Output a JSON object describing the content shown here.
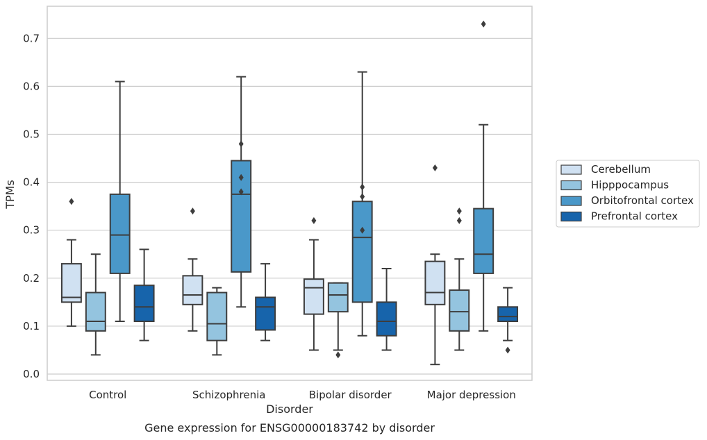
{
  "chart_data": {
    "type": "box",
    "caption": "Gene expression for ENSG00000183742 by disorder",
    "xlabel": "Disorder",
    "ylabel": "TPMs",
    "ylim": [
      -0.013,
      0.767
    ],
    "yticks": [
      "0.0",
      "0.1",
      "0.2",
      "0.3",
      "0.4",
      "0.5",
      "0.6",
      "0.7"
    ],
    "grid": true,
    "legend_position": "right",
    "categories": [
      "Control",
      "Schizophrenia",
      "Bipolar disorder",
      "Major depression"
    ],
    "series": [
      {
        "name": "Cerebellum",
        "color": "#d0e1f2",
        "boxes": [
          {
            "whisker_low": 0.1,
            "q1": 0.15,
            "median": 0.16,
            "q3": 0.23,
            "whisker_high": 0.28,
            "outliers": [
              0.36
            ]
          },
          {
            "whisker_low": 0.09,
            "q1": 0.145,
            "median": 0.165,
            "q3": 0.205,
            "whisker_high": 0.24,
            "outliers": [
              0.34
            ]
          },
          {
            "whisker_low": 0.05,
            "q1": 0.125,
            "median": 0.18,
            "q3": 0.198,
            "whisker_high": 0.28,
            "outliers": [
              0.32
            ]
          },
          {
            "whisker_low": 0.02,
            "q1": 0.145,
            "median": 0.17,
            "q3": 0.235,
            "whisker_high": 0.25,
            "outliers": [
              0.43
            ]
          }
        ]
      },
      {
        "name": "Hipppocampus",
        "color": "#94c4df",
        "boxes": [
          {
            "whisker_low": 0.04,
            "q1": 0.09,
            "median": 0.11,
            "q3": 0.17,
            "whisker_high": 0.25,
            "outliers": []
          },
          {
            "whisker_low": 0.04,
            "q1": 0.07,
            "median": 0.105,
            "q3": 0.17,
            "whisker_high": 0.18,
            "outliers": []
          },
          {
            "whisker_low": 0.05,
            "q1": 0.13,
            "median": 0.165,
            "q3": 0.19,
            "whisker_high": 0.19,
            "outliers": [
              0.04
            ]
          },
          {
            "whisker_low": 0.05,
            "q1": 0.09,
            "median": 0.13,
            "q3": 0.175,
            "whisker_high": 0.24,
            "outliers": [
              0.32,
              0.34
            ]
          }
        ]
      },
      {
        "name": "Orbitofrontal cortex",
        "color": "#4a98c9",
        "boxes": [
          {
            "whisker_low": 0.11,
            "q1": 0.21,
            "median": 0.29,
            "q3": 0.375,
            "whisker_high": 0.61,
            "outliers": []
          },
          {
            "whisker_low": 0.14,
            "q1": 0.213,
            "median": 0.375,
            "q3": 0.445,
            "whisker_high": 0.62,
            "outliers": [
              0.38,
              0.41,
              0.48
            ]
          },
          {
            "whisker_low": 0.08,
            "q1": 0.15,
            "median": 0.285,
            "q3": 0.36,
            "whisker_high": 0.63,
            "outliers": [
              0.3,
              0.37,
              0.39
            ]
          },
          {
            "whisker_low": 0.09,
            "q1": 0.21,
            "median": 0.25,
            "q3": 0.345,
            "whisker_high": 0.52,
            "outliers": [
              0.73
            ]
          }
        ]
      },
      {
        "name": "Prefrontal cortex",
        "color": "#1764ab",
        "boxes": [
          {
            "whisker_low": 0.07,
            "q1": 0.11,
            "median": 0.14,
            "q3": 0.185,
            "whisker_high": 0.26,
            "outliers": []
          },
          {
            "whisker_low": 0.07,
            "q1": 0.092,
            "median": 0.14,
            "q3": 0.16,
            "whisker_high": 0.23,
            "outliers": []
          },
          {
            "whisker_low": 0.05,
            "q1": 0.08,
            "median": 0.11,
            "q3": 0.15,
            "whisker_high": 0.22,
            "outliers": []
          },
          {
            "whisker_low": 0.07,
            "q1": 0.11,
            "median": 0.12,
            "q3": 0.14,
            "whisker_high": 0.18,
            "outliers": [
              0.05
            ]
          }
        ]
      }
    ]
  }
}
